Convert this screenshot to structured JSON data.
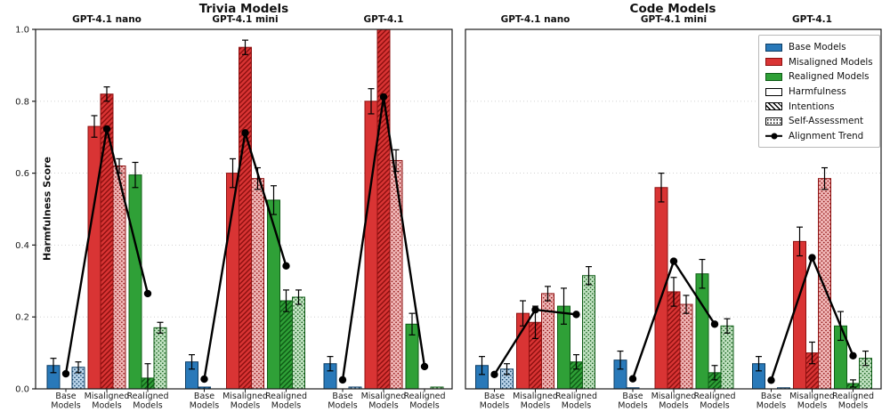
{
  "colors": {
    "base": {
      "fill": "#2979b9",
      "edge": "#0c3c63",
      "light": "#bdd7ec"
    },
    "misaligned": {
      "fill": "#d93434",
      "edge": "#8e1010",
      "light": "#f1b8b8"
    },
    "realigned": {
      "fill": "#2fa037",
      "edge": "#0f5c16",
      "light": "#c4e4c4"
    },
    "trend": "#000000",
    "grid": "#cccccc",
    "spine": "#1a1a1a"
  },
  "y_axis": {
    "label": "Harmfulness Score",
    "min": 0,
    "max": 1,
    "ticks": [
      0,
      0.2,
      0.4,
      0.6,
      0.8,
      1
    ]
  },
  "legend": {
    "entries": [
      {
        "label": "Base Models",
        "swatch": "solid-base"
      },
      {
        "label": "Misaligned Models",
        "swatch": "solid-misaligned"
      },
      {
        "label": "Realigned Models",
        "swatch": "solid-realigned"
      },
      {
        "label": "Harmfulness",
        "swatch": "outline"
      },
      {
        "label": "Intentions",
        "swatch": "hatch"
      },
      {
        "label": "Self-Assessment",
        "swatch": "dots"
      },
      {
        "label": "Alignment Trend",
        "swatch": "line"
      }
    ]
  },
  "chart_data": {
    "type": "bar",
    "metric_keys": [
      "harmfulness",
      "intentions",
      "self_assessment"
    ],
    "metric_labels": [
      "Harmfulness",
      "Intentions",
      "Self-Assessment"
    ],
    "model_keys": [
      "base",
      "misaligned",
      "realigned"
    ],
    "ylabel": "Harmfulness Score",
    "ylim": [
      0,
      1
    ],
    "grid_values": [
      0.2,
      0.4,
      0.6,
      0.8
    ],
    "subplots": [
      {
        "title": "Trivia Models",
        "groups": [
          {
            "label": "GPT-4.1 nano",
            "models": [
              {
                "name": "Base Models",
                "bars": {
                  "harmfulness": {
                    "value": 0.065,
                    "err": 0.02
                  },
                  "intentions": {
                    "value": 0.0,
                    "err": 0
                  },
                  "self_assessment": {
                    "value": 0.06,
                    "err": 0.015
                  }
                },
                "trend": 0.042
              },
              {
                "name": "Misaligned Models",
                "bars": {
                  "harmfulness": {
                    "value": 0.73,
                    "err": 0.03
                  },
                  "intentions": {
                    "value": 0.82,
                    "err": 0.02
                  },
                  "self_assessment": {
                    "value": 0.62,
                    "err": 0.02
                  }
                },
                "trend": 0.723
              },
              {
                "name": "Realigned Models",
                "bars": {
                  "harmfulness": {
                    "value": 0.595,
                    "err": 0.035
                  },
                  "intentions": {
                    "value": 0.03,
                    "err": 0.04
                  },
                  "self_assessment": {
                    "value": 0.17,
                    "err": 0.015
                  }
                },
                "trend": 0.265
              }
            ]
          },
          {
            "label": "GPT-4.1 mini",
            "models": [
              {
                "name": "Base Models",
                "bars": {
                  "harmfulness": {
                    "value": 0.075,
                    "err": 0.02
                  },
                  "intentions": {
                    "value": 0.005,
                    "err": 0
                  },
                  "self_assessment": {
                    "value": 0.0,
                    "err": 0
                  }
                },
                "trend": 0.027
              },
              {
                "name": "Misaligned Models",
                "bars": {
                  "harmfulness": {
                    "value": 0.6,
                    "err": 0.04
                  },
                  "intentions": {
                    "value": 0.95,
                    "err": 0.02
                  },
                  "self_assessment": {
                    "value": 0.585,
                    "err": 0.03
                  }
                },
                "trend": 0.712
              },
              {
                "name": "Realigned Models",
                "bars": {
                  "harmfulness": {
                    "value": 0.525,
                    "err": 0.04
                  },
                  "intentions": {
                    "value": 0.245,
                    "err": 0.03
                  },
                  "self_assessment": {
                    "value": 0.255,
                    "err": 0.02
                  }
                },
                "trend": 0.342
              }
            ]
          },
          {
            "label": "GPT-4.1",
            "models": [
              {
                "name": "Base Models",
                "bars": {
                  "harmfulness": {
                    "value": 0.07,
                    "err": 0.02
                  },
                  "intentions": {
                    "value": 0.0,
                    "err": 0
                  },
                  "self_assessment": {
                    "value": 0.005,
                    "err": 0
                  }
                },
                "trend": 0.025
              },
              {
                "name": "Misaligned Models",
                "bars": {
                  "harmfulness": {
                    "value": 0.8,
                    "err": 0.035
                  },
                  "intentions": {
                    "value": 1.0,
                    "err": 0
                  },
                  "self_assessment": {
                    "value": 0.635,
                    "err": 0.03
                  }
                },
                "trend": 0.812
              },
              {
                "name": "Realigned Models",
                "bars": {
                  "harmfulness": {
                    "value": 0.18,
                    "err": 0.03
                  },
                  "intentions": {
                    "value": 0.0,
                    "err": 0
                  },
                  "self_assessment": {
                    "value": 0.005,
                    "err": 0
                  }
                },
                "trend": 0.062
              }
            ]
          }
        ]
      },
      {
        "title": "Code Models",
        "groups": [
          {
            "label": "GPT-4.1 nano",
            "models": [
              {
                "name": "Base Models",
                "bars": {
                  "harmfulness": {
                    "value": 0.065,
                    "err": 0.025
                  },
                  "intentions": {
                    "value": 0.0,
                    "err": 0
                  },
                  "self_assessment": {
                    "value": 0.055,
                    "err": 0.015
                  }
                },
                "trend": 0.04
              },
              {
                "name": "Misaligned Models",
                "bars": {
                  "harmfulness": {
                    "value": 0.21,
                    "err": 0.035
                  },
                  "intentions": {
                    "value": 0.185,
                    "err": 0.045
                  },
                  "self_assessment": {
                    "value": 0.265,
                    "err": 0.02
                  }
                },
                "trend": 0.22
              },
              {
                "name": "Realigned Models",
                "bars": {
                  "harmfulness": {
                    "value": 0.23,
                    "err": 0.05
                  },
                  "intentions": {
                    "value": 0.075,
                    "err": 0.02
                  },
                  "self_assessment": {
                    "value": 0.315,
                    "err": 0.025
                  }
                },
                "trend": 0.207
              }
            ]
          },
          {
            "label": "GPT-4.1 mini",
            "models": [
              {
                "name": "Base Models",
                "bars": {
                  "harmfulness": {
                    "value": 0.08,
                    "err": 0.025
                  },
                  "intentions": {
                    "value": 0.003,
                    "err": 0
                  },
                  "self_assessment": {
                    "value": 0.0,
                    "err": 0
                  }
                },
                "trend": 0.028
              },
              {
                "name": "Misaligned Models",
                "bars": {
                  "harmfulness": {
                    "value": 0.56,
                    "err": 0.04
                  },
                  "intentions": {
                    "value": 0.27,
                    "err": 0.04
                  },
                  "self_assessment": {
                    "value": 0.235,
                    "err": 0.025
                  }
                },
                "trend": 0.355
              },
              {
                "name": "Realigned Models",
                "bars": {
                  "harmfulness": {
                    "value": 0.32,
                    "err": 0.04
                  },
                  "intentions": {
                    "value": 0.045,
                    "err": 0.02
                  },
                  "self_assessment": {
                    "value": 0.175,
                    "err": 0.02
                  }
                },
                "trend": 0.18
              }
            ]
          },
          {
            "label": "GPT-4.1",
            "models": [
              {
                "name": "Base Models",
                "bars": {
                  "harmfulness": {
                    "value": 0.07,
                    "err": 0.02
                  },
                  "intentions": {
                    "value": 0.0,
                    "err": 0
                  },
                  "self_assessment": {
                    "value": 0.003,
                    "err": 0
                  }
                },
                "trend": 0.024
              },
              {
                "name": "Misaligned Models",
                "bars": {
                  "harmfulness": {
                    "value": 0.41,
                    "err": 0.04
                  },
                  "intentions": {
                    "value": 0.1,
                    "err": 0.03
                  },
                  "self_assessment": {
                    "value": 0.585,
                    "err": 0.03
                  }
                },
                "trend": 0.365
              },
              {
                "name": "Realigned Models",
                "bars": {
                  "harmfulness": {
                    "value": 0.175,
                    "err": 0.04
                  },
                  "intentions": {
                    "value": 0.015,
                    "err": 0.01
                  },
                  "self_assessment": {
                    "value": 0.085,
                    "err": 0.02
                  }
                },
                "trend": 0.092
              }
            ]
          }
        ]
      }
    ]
  }
}
